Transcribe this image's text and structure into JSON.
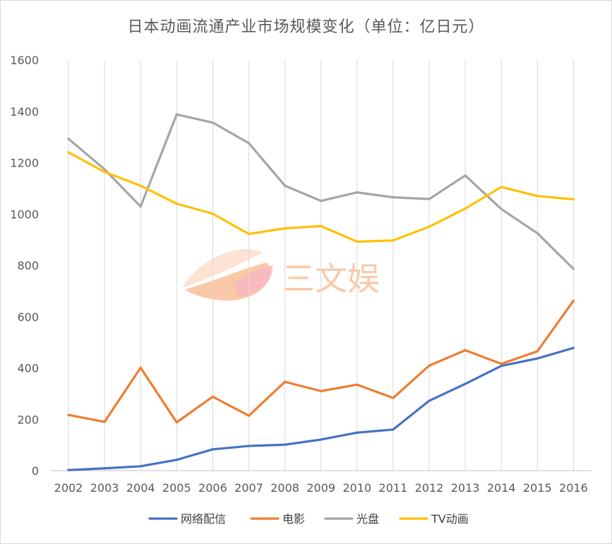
{
  "chart_data": {
    "type": "line",
    "title": "日本动画流通产业市场规模变化（单位：亿日元）",
    "xlabel": "",
    "ylabel": "",
    "categories": [
      "2002",
      "2003",
      "2004",
      "2005",
      "2006",
      "2007",
      "2008",
      "2009",
      "2010",
      "2011",
      "2012",
      "2013",
      "2014",
      "2015",
      "2016"
    ],
    "ylim": [
      0,
      1600
    ],
    "yticks": [
      "0",
      "200",
      "400",
      "600",
      "800",
      "1000",
      "1200",
      "1400",
      "1600"
    ],
    "grid": "vertical",
    "legend_position": "bottom",
    "series": [
      {
        "name": "网络配信",
        "color": "#4472c4",
        "values": [
          2,
          9,
          17,
          42,
          83,
          96,
          101,
          121,
          148,
          160,
          272,
          338,
          408,
          437,
          478
        ]
      },
      {
        "name": "电影",
        "color": "#ed7d31",
        "values": [
          217,
          190,
          401,
          188,
          288,
          214,
          346,
          310,
          335,
          283,
          409,
          469,
          416,
          465,
          662
        ]
      },
      {
        "name": "光盘",
        "color": "#a5a5a5",
        "values": [
          1293,
          1174,
          1029,
          1388,
          1356,
          1276,
          1110,
          1051,
          1084,
          1065,
          1058,
          1150,
          1019,
          925,
          786
        ]
      },
      {
        "name": "TV动画",
        "color": "#ffc000",
        "values": [
          1240,
          1164,
          1110,
          1040,
          1001,
          922,
          944,
          953,
          892,
          897,
          950,
          1021,
          1105,
          1070,
          1057
        ]
      }
    ]
  },
  "watermark": {
    "text": "三文娱",
    "colors": {
      "main": "#f9c9a8",
      "light": "#fde3d3",
      "pink": "#f7b6c0"
    }
  }
}
